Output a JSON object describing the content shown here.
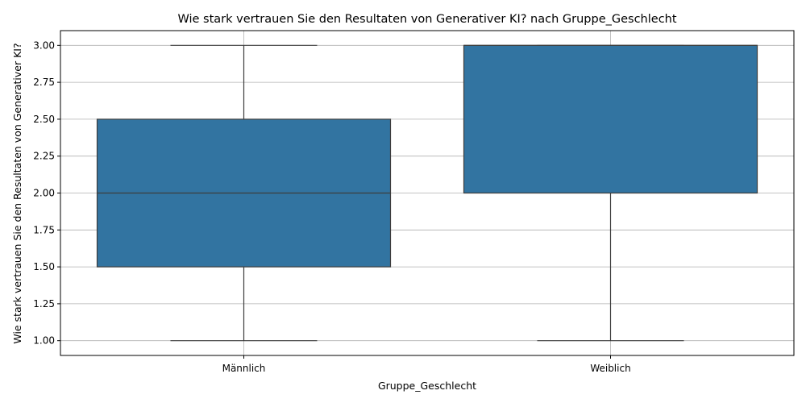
{
  "chart_data": {
    "type": "boxplot",
    "title": "Wie stark vertrauen Sie den Resultaten von Generativer KI? nach Gruppe_Geschlecht",
    "xlabel": "Gruppe_Geschlecht",
    "ylabel": "Wie stark vertrauen Sie den Resultaten von Generativer KI?",
    "ylim": [
      0.9,
      3.1
    ],
    "yticks": [
      "1.00",
      "1.25",
      "1.50",
      "1.75",
      "2.00",
      "2.25",
      "2.50",
      "2.75",
      "3.00"
    ],
    "grid": true,
    "categories": [
      "Männlich",
      "Weiblich"
    ],
    "boxes": [
      {
        "category": "Männlich",
        "whisker_low": 1.0,
        "q1": 1.5,
        "median": 2.0,
        "q3": 2.5,
        "whisker_high": 3.0
      },
      {
        "category": "Weiblich",
        "whisker_low": 1.0,
        "q1": 2.0,
        "median": 3.0,
        "q3": 3.0,
        "whisker_high": 3.0
      }
    ],
    "box_color": "#3274a1",
    "line_color": "#3d3d3d",
    "grid_color": "#b0b0b0"
  }
}
